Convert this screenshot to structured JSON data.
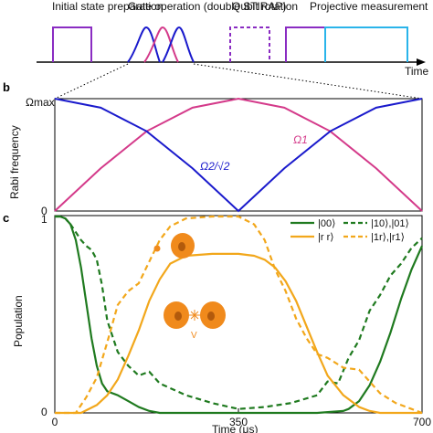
{
  "panel_a": {
    "labels": [
      "Initial state preparation",
      "Gate operation (double STIRAP)",
      "Qubit rotation",
      "Projective measurement"
    ],
    "time_label": "Time",
    "colors": {
      "purple": "#8a2cc2",
      "blue": "#1a1acc",
      "pink": "#d43a8a",
      "cyan": "#2ab4ea",
      "dashed_purple": "#8a2cc2"
    }
  },
  "panel_b": {
    "letter": "b",
    "ylabel": "Rabi frequency",
    "ytick_top": "Ωmax",
    "ytick_bottom": "0",
    "curve_label_omega1": "Ω1",
    "curve_label_omega2": "Ω2/√2",
    "colors": {
      "omega1": "#d43a8a",
      "omega2": "#1a1acc"
    }
  },
  "panel_c": {
    "letter": "c",
    "ylabel": "Population",
    "xlabel": "Time (μs)",
    "ytick_top": "1",
    "ytick_bottom": "0",
    "xticks": [
      "0",
      "350",
      "700"
    ],
    "legend": [
      {
        "label": "|00⟩",
        "color": "#1f7a1f",
        "style": "solid"
      },
      {
        "label": "|10⟩,|01⟩",
        "color": "#1f7a1f",
        "style": "dashed"
      },
      {
        "label": "|r r⟩",
        "color": "#f2a71b",
        "style": "solid"
      },
      {
        "label": "|1r⟩,|r1⟩",
        "color": "#f2a71b",
        "style": "dashed"
      }
    ],
    "colors": {
      "green": "#1f7a1f",
      "orange": "#f2a71b",
      "atom": "#f08a1c"
    }
  },
  "chart_data": [
    {
      "type": "line",
      "title": "",
      "xlabel": "",
      "ylabel": "Rabi frequency",
      "x": [
        0,
        87.5,
        175,
        262.5,
        350,
        437.5,
        525,
        612.5,
        700
      ],
      "xlim": [
        0,
        700
      ],
      "ylim": [
        0,
        1
      ],
      "series": [
        {
          "name": "Ω1",
          "values": [
            0,
            0.38,
            0.71,
            0.92,
            1.0,
            0.92,
            0.71,
            0.38,
            0
          ]
        },
        {
          "name": "Ω2/√2",
          "values": [
            1.0,
            0.92,
            0.71,
            0.38,
            0,
            0.38,
            0.71,
            0.92,
            1.0
          ]
        }
      ]
    },
    {
      "type": "line",
      "title": "",
      "xlabel": "Time (μs)",
      "ylabel": "Population",
      "xlim": [
        0,
        700
      ],
      "ylim": [
        0,
        1
      ],
      "series": [
        {
          "name": "|00⟩",
          "x": [
            0,
            10,
            20,
            30,
            40,
            50,
            60,
            70,
            80,
            90,
            100,
            120,
            140,
            160,
            180,
            200,
            250,
            300,
            350,
            400,
            450,
            500,
            550,
            560,
            580,
            600,
            620,
            640,
            660,
            680,
            700
          ],
          "values": [
            1.0,
            1.0,
            0.99,
            0.96,
            0.88,
            0.74,
            0.56,
            0.38,
            0.24,
            0.15,
            0.11,
            0.09,
            0.06,
            0.03,
            0.01,
            0.0,
            0.0,
            0.0,
            0.0,
            0.0,
            0.0,
            0.0,
            0.01,
            0.02,
            0.06,
            0.14,
            0.26,
            0.41,
            0.58,
            0.73,
            0.85
          ]
        },
        {
          "name": "|10⟩,|01⟩",
          "x": [
            0,
            10,
            20,
            30,
            40,
            50,
            60,
            70,
            80,
            90,
            100,
            120,
            140,
            160,
            180,
            200,
            250,
            300,
            350,
            400,
            450,
            500,
            520,
            540,
            560,
            580,
            600,
            620,
            640,
            660,
            680,
            700
          ],
          "values": [
            1.0,
            1.0,
            0.99,
            0.96,
            0.92,
            0.88,
            0.85,
            0.83,
            0.78,
            0.65,
            0.47,
            0.31,
            0.24,
            0.19,
            0.21,
            0.15,
            0.09,
            0.05,
            0.02,
            0.03,
            0.05,
            0.09,
            0.16,
            0.15,
            0.28,
            0.37,
            0.52,
            0.6,
            0.7,
            0.76,
            0.84,
            0.89
          ]
        },
        {
          "name": "|r r⟩",
          "x": [
            0,
            50,
            80,
            100,
            120,
            140,
            160,
            180,
            200,
            220,
            250,
            300,
            330,
            350,
            380,
            400,
            420,
            440,
            460,
            480,
            500,
            520,
            550,
            580,
            600,
            620,
            650,
            700
          ],
          "values": [
            0.0,
            0.0,
            0.04,
            0.09,
            0.17,
            0.29,
            0.42,
            0.57,
            0.68,
            0.76,
            0.8,
            0.81,
            0.81,
            0.81,
            0.8,
            0.78,
            0.74,
            0.67,
            0.57,
            0.44,
            0.31,
            0.19,
            0.09,
            0.03,
            0.01,
            0.0,
            0.0,
            0.0
          ]
        },
        {
          "name": "|1r⟩,|r1⟩",
          "x": [
            0,
            40,
            60,
            80,
            100,
            120,
            140,
            160,
            180,
            200,
            220,
            250,
            300,
            350,
            380,
            400,
            420,
            440,
            460,
            480,
            500,
            520,
            550,
            580,
            600,
            620,
            650,
            680,
            700
          ],
          "values": [
            0.0,
            0.0,
            0.08,
            0.18,
            0.36,
            0.55,
            0.62,
            0.66,
            0.77,
            0.88,
            0.95,
            0.99,
            1.0,
            1.0,
            0.96,
            0.88,
            0.73,
            0.62,
            0.48,
            0.38,
            0.3,
            0.28,
            0.23,
            0.22,
            0.16,
            0.1,
            0.05,
            0.02,
            0.0
          ]
        }
      ]
    }
  ]
}
